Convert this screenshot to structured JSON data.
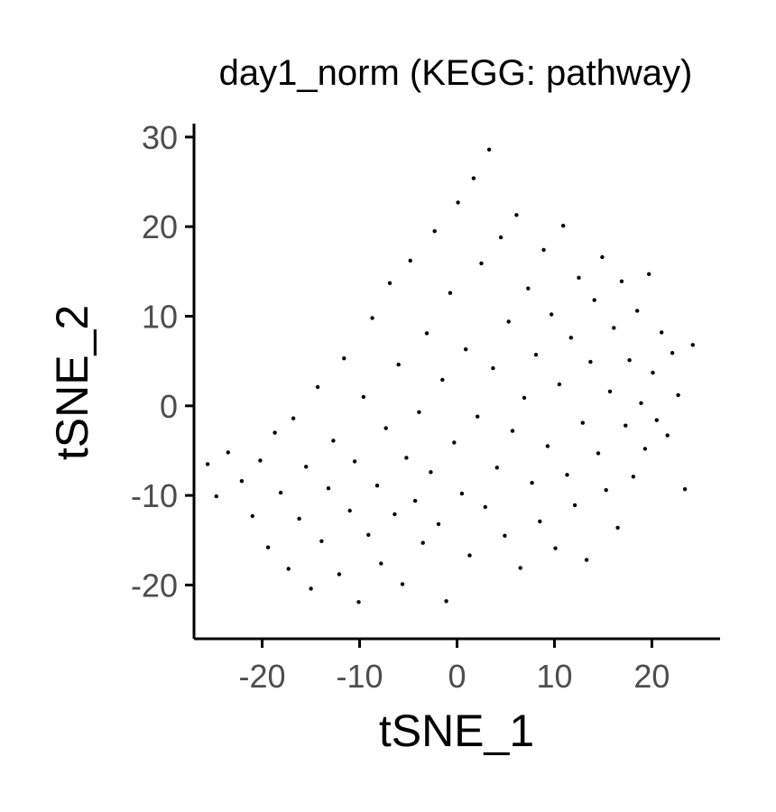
{
  "chart_data": {
    "type": "scatter",
    "title": "day1_norm (KEGG: pathway)",
    "xlabel": "tSNE_1",
    "ylabel": "tSNE_2",
    "xlim": [
      -27,
      27
    ],
    "ylim": [
      -26,
      31.5
    ],
    "xticks": [
      -20,
      -10,
      0,
      10,
      20
    ],
    "xtick_labels": [
      "-20",
      "-10",
      "0",
      "10",
      "20"
    ],
    "yticks": [
      -20,
      -10,
      0,
      10,
      20,
      30
    ],
    "ytick_labels": [
      "-20",
      "-10",
      "0",
      "10",
      "20",
      "30"
    ],
    "grid": false,
    "legend": "none",
    "point_color": "#000000",
    "series": [
      {
        "points": [
          [
            -23.5,
            -5.2
          ],
          [
            -22.1,
            -8.4
          ],
          [
            -21.0,
            -12.3
          ],
          [
            -20.2,
            -6.1
          ],
          [
            -19.4,
            -15.8
          ],
          [
            -18.7,
            -3.0
          ],
          [
            -18.1,
            -9.7
          ],
          [
            -17.3,
            -18.2
          ],
          [
            -16.8,
            -1.4
          ],
          [
            -16.2,
            -12.6
          ],
          [
            -15.5,
            -6.8
          ],
          [
            -15.0,
            -20.4
          ],
          [
            -14.3,
            2.1
          ],
          [
            -13.9,
            -15.1
          ],
          [
            -13.2,
            -9.2
          ],
          [
            -12.7,
            -3.9
          ],
          [
            -12.1,
            -18.8
          ],
          [
            -11.6,
            5.3
          ],
          [
            -11.0,
            -11.7
          ],
          [
            -10.5,
            -6.2
          ],
          [
            -10.1,
            -21.9
          ],
          [
            -9.6,
            1.0
          ],
          [
            -9.1,
            -14.4
          ],
          [
            -8.7,
            9.8
          ],
          [
            -8.2,
            -8.9
          ],
          [
            -7.8,
            -17.6
          ],
          [
            -7.3,
            -2.5
          ],
          [
            -6.9,
            13.7
          ],
          [
            -6.4,
            -12.1
          ],
          [
            -6.0,
            4.6
          ],
          [
            -5.6,
            -19.9
          ],
          [
            -5.2,
            -5.8
          ],
          [
            -4.8,
            16.2
          ],
          [
            -4.3,
            -10.6
          ],
          [
            -3.9,
            -0.7
          ],
          [
            -3.5,
            -15.3
          ],
          [
            -3.1,
            8.1
          ],
          [
            -2.7,
            -7.4
          ],
          [
            -2.3,
            19.5
          ],
          [
            -1.9,
            -13.2
          ],
          [
            -1.5,
            2.9
          ],
          [
            -1.1,
            -21.8
          ],
          [
            -0.7,
            12.6
          ],
          [
            -0.3,
            -4.1
          ],
          [
            0.1,
            22.7
          ],
          [
            0.5,
            -9.8
          ],
          [
            0.9,
            6.3
          ],
          [
            1.3,
            -16.7
          ],
          [
            1.7,
            25.4
          ],
          [
            2.1,
            -1.2
          ],
          [
            2.5,
            15.9
          ],
          [
            2.9,
            -11.3
          ],
          [
            3.3,
            28.6
          ],
          [
            3.7,
            4.2
          ],
          [
            4.1,
            -6.9
          ],
          [
            4.5,
            18.8
          ],
          [
            4.9,
            -14.5
          ],
          [
            5.3,
            9.4
          ],
          [
            5.7,
            -2.8
          ],
          [
            6.1,
            21.3
          ],
          [
            6.5,
            -18.1
          ],
          [
            6.9,
            0.9
          ],
          [
            7.3,
            13.1
          ],
          [
            7.7,
            -8.6
          ],
          [
            8.1,
            5.7
          ],
          [
            8.5,
            -12.9
          ],
          [
            8.9,
            17.4
          ],
          [
            9.3,
            -4.5
          ],
          [
            9.7,
            10.2
          ],
          [
            10.1,
            -15.9
          ],
          [
            10.5,
            2.4
          ],
          [
            10.9,
            20.1
          ],
          [
            11.3,
            -7.7
          ],
          [
            11.7,
            7.6
          ],
          [
            12.1,
            -11.1
          ],
          [
            12.5,
            14.3
          ],
          [
            12.9,
            -1.9
          ],
          [
            13.3,
            -17.2
          ],
          [
            13.7,
            4.9
          ],
          [
            14.1,
            11.8
          ],
          [
            14.5,
            -5.3
          ],
          [
            14.9,
            16.6
          ],
          [
            15.3,
            -9.4
          ],
          [
            15.7,
            1.6
          ],
          [
            16.1,
            8.7
          ],
          [
            16.5,
            -13.6
          ],
          [
            16.9,
            13.9
          ],
          [
            17.3,
            -2.2
          ],
          [
            17.7,
            5.1
          ],
          [
            18.1,
            -7.9
          ],
          [
            18.5,
            10.6
          ],
          [
            18.9,
            0.3
          ],
          [
            19.3,
            -4.8
          ],
          [
            19.7,
            14.7
          ],
          [
            20.1,
            3.7
          ],
          [
            20.5,
            -1.6
          ],
          [
            21.0,
            8.2
          ],
          [
            21.6,
            -3.3
          ],
          [
            22.1,
            5.9
          ],
          [
            22.7,
            1.2
          ],
          [
            23.4,
            -9.3
          ],
          [
            24.2,
            6.8
          ],
          [
            -25.6,
            -6.5
          ],
          [
            -24.7,
            -10.1
          ]
        ]
      }
    ]
  }
}
